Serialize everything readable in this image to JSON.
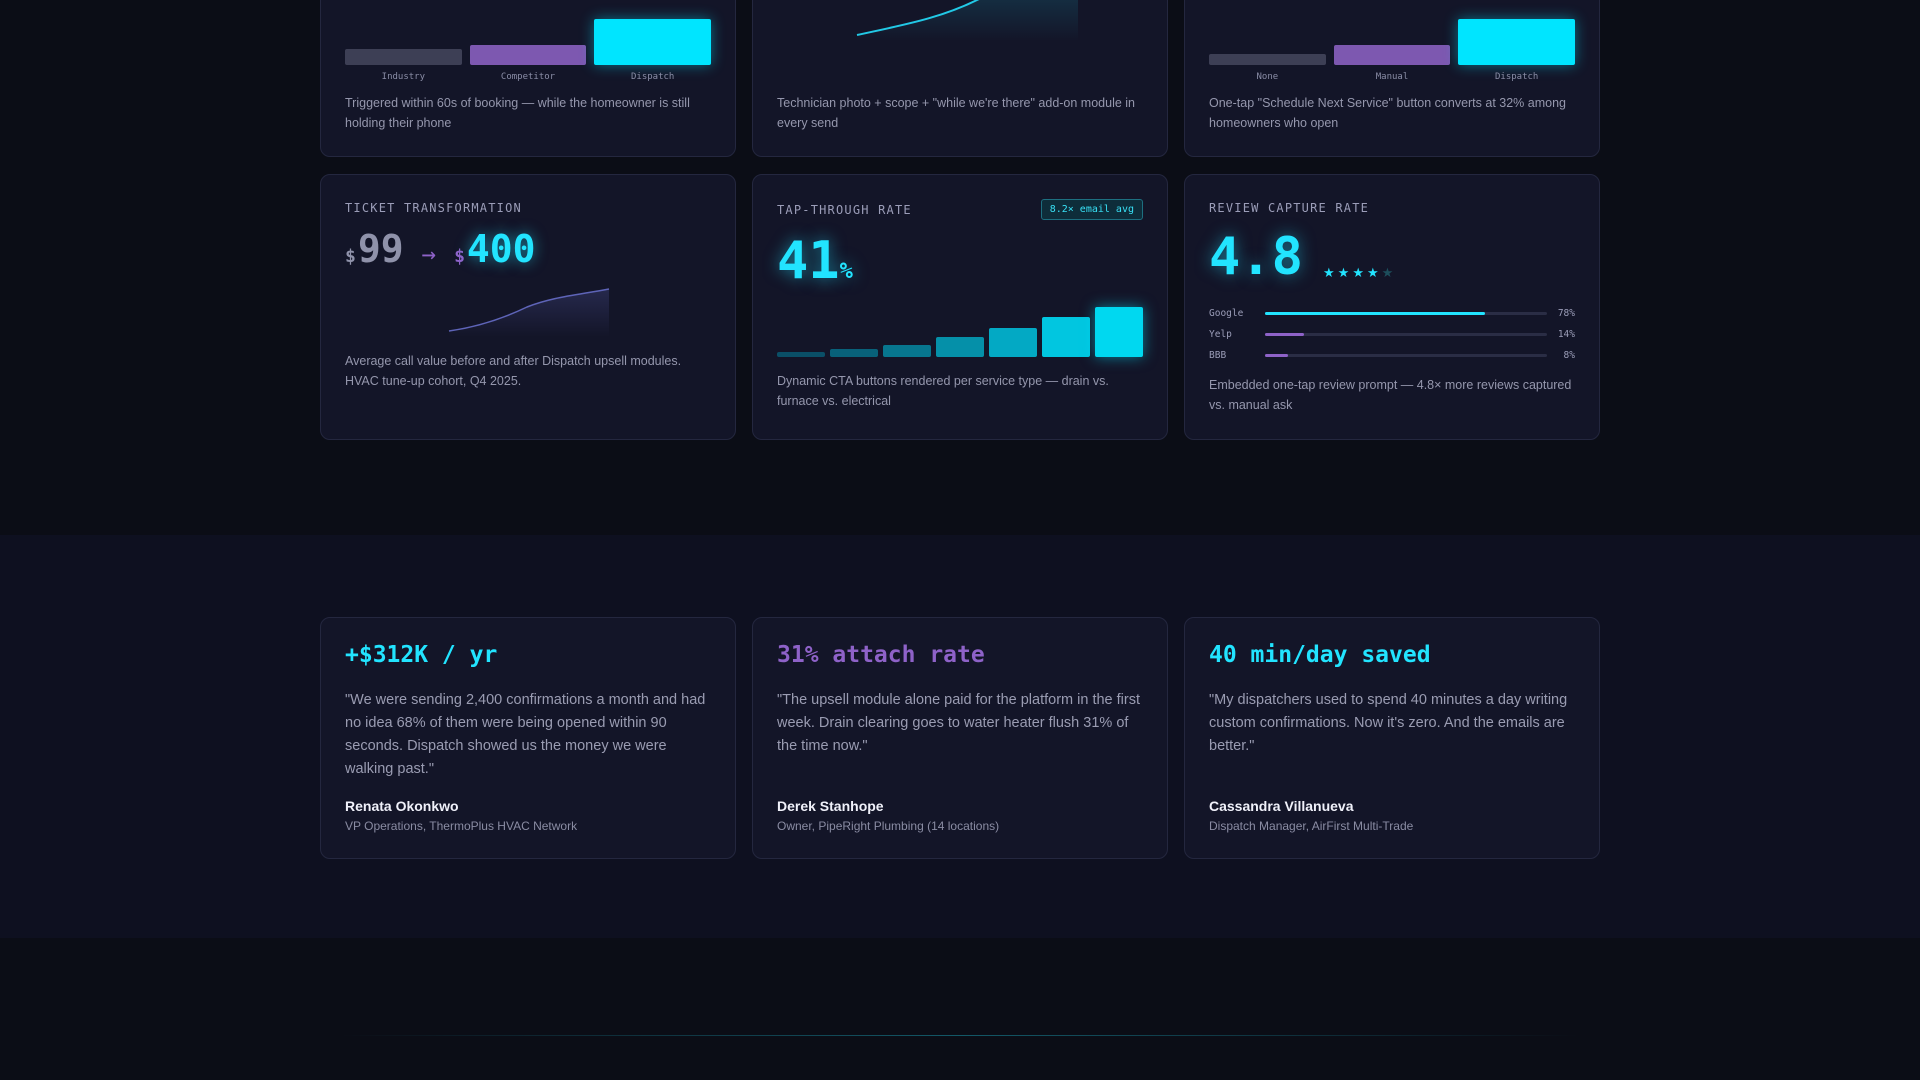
{
  "top_cards": [
    {
      "bars": [
        {
          "label": "Industry",
          "value": 0.34,
          "color": "#3d3f55"
        },
        {
          "label": "Competitor",
          "value": 0.44,
          "color": "#7d58b0"
        },
        {
          "label": "Dispatch",
          "value": 1.0,
          "color": "#00e5ff"
        }
      ],
      "desc": "Triggered within 60s of booking — while the homeowner is still holding their phone"
    },
    {
      "desc": "Technician photo + scope + \"while we're there\" add-on module in every send"
    },
    {
      "bars": [
        {
          "label": "None",
          "value": 0.24,
          "color": "#3d3f55"
        },
        {
          "label": "Manual",
          "value": 0.44,
          "color": "#7d58b0"
        },
        {
          "label": "Dispatch",
          "value": 1.0,
          "color": "#00e5ff"
        }
      ],
      "desc": "One-tap \"Schedule Next Service\" button converts at 32% among homeowners who open"
    }
  ],
  "ticket": {
    "kicker": "TICKET TRANSFORMATION",
    "currency": "$",
    "before": "99",
    "arrow": "→",
    "after": "400",
    "desc": "Average call value before and after Dispatch upsell modules. HVAC tune-up cohort, Q4 2025."
  },
  "tap": {
    "kicker": "TAP-THROUGH RATE",
    "badge": "8.2× email avg",
    "value": "41",
    "unit": "%",
    "bars": [
      0.1,
      0.16,
      0.24,
      0.4,
      0.58,
      0.79,
      1.0
    ],
    "desc": "Dynamic CTA buttons rendered per service type — drain vs. furnace vs. electrical"
  },
  "review": {
    "kicker": "REVIEW CAPTURE RATE",
    "rating": "4.8",
    "stars": 4,
    "star_max": 5,
    "star_glyph": "★",
    "sources": [
      {
        "name": "Google",
        "pct_label": "78%",
        "value": 0.78,
        "color": "#22e4ff"
      },
      {
        "name": "Yelp",
        "pct_label": "14%",
        "value": 0.14,
        "color": "#8e62c8"
      },
      {
        "name": "BBB",
        "pct_label": "8%",
        "value": 0.08,
        "color": "#8e62c8"
      }
    ],
    "desc": "Embedded one-tap review prompt — 4.8× more reviews captured vs. manual ask"
  },
  "testimonials": [
    {
      "headline": "+$312K / yr",
      "color": "#22e4ff",
      "quote": "\"We were sending 2,400 confirmations a month and had no idea 68% of them were being opened within 90 seconds. Dispatch showed us the money we were walking past.\"",
      "name": "Renata Okonkwo",
      "role": "VP Operations, ThermoPlus HVAC Network"
    },
    {
      "headline": "31% attach rate",
      "color": "#8e62c8",
      "quote": "\"The upsell module alone paid for the platform in the first week. Drain clearing goes to water heater flush 31% of the time now.\"",
      "name": "Derek Stanhope",
      "role": "Owner, PipeRight Plumbing (14 locations)"
    },
    {
      "headline": "40 min/day saved",
      "color": "#22e4ff",
      "quote": "\"My dispatchers used to spend 40 minutes a day writing custom confirmations. Now it's zero. And the emails are better.\"",
      "name": "Cassandra Villanueva",
      "role": "Dispatch Manager, AirFirst Multi-Trade"
    }
  ]
}
